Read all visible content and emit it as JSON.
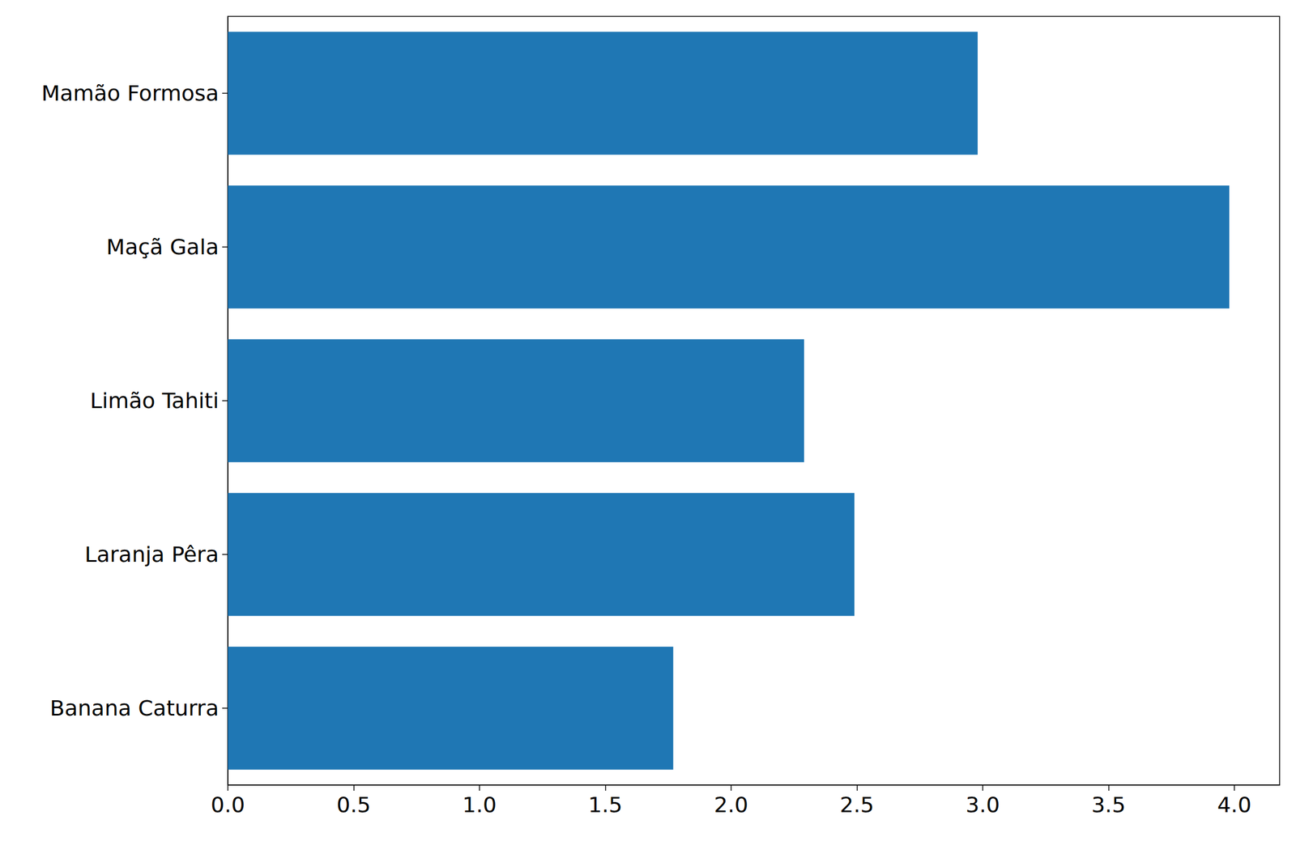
{
  "chart_data": {
    "type": "bar",
    "orientation": "horizontal",
    "categories": [
      "Banana Caturra",
      "Laranja Pêra",
      "Limão Tahiti",
      "Maçã Gala",
      "Mamão Formosa"
    ],
    "values": [
      1.77,
      2.49,
      2.29,
      3.98,
      2.98
    ],
    "color": "#1f77b4",
    "xlim": [
      0,
      4.18
    ],
    "xticks": [
      {
        "value": 0,
        "label": "0.0"
      },
      {
        "value": 0.5,
        "label": "0.5"
      },
      {
        "value": 1,
        "label": "1.0"
      },
      {
        "value": 1.5,
        "label": "1.5"
      },
      {
        "value": 2,
        "label": "2.0"
      },
      {
        "value": 2.5,
        "label": "2.5"
      },
      {
        "value": 3,
        "label": "3.0"
      },
      {
        "value": 3.5,
        "label": "3.5"
      },
      {
        "value": 4,
        "label": "4.0"
      }
    ],
    "grid": false
  }
}
